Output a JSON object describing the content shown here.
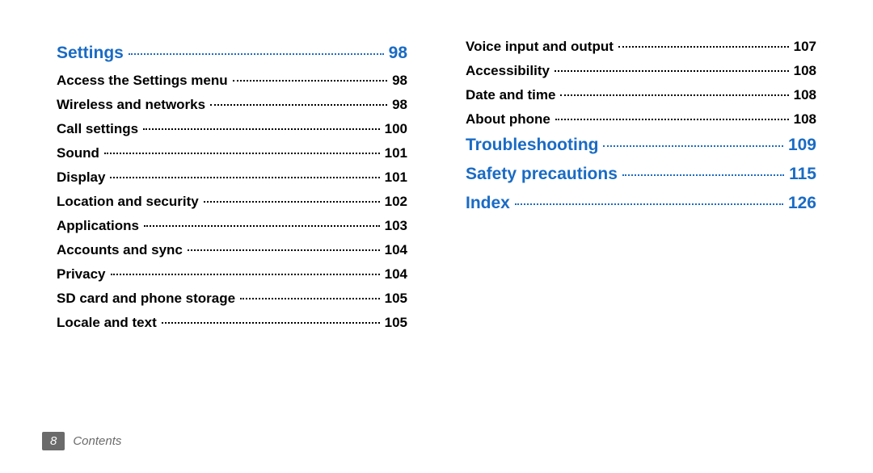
{
  "colors": {
    "section": "#1a6bc4",
    "text": "#000000",
    "footer_badge_bg": "#6b6b6b",
    "footer_text": "#6b6b6b",
    "background": "#ffffff"
  },
  "left_column": [
    {
      "label": "Settings",
      "page": "98",
      "section": true
    },
    {
      "label": "Access the Settings menu",
      "page": "98"
    },
    {
      "label": "Wireless and networks",
      "page": "98"
    },
    {
      "label": "Call settings",
      "page": "100"
    },
    {
      "label": "Sound",
      "page": "101"
    },
    {
      "label": "Display",
      "page": "101"
    },
    {
      "label": "Location and security",
      "page": "102"
    },
    {
      "label": "Applications",
      "page": "103"
    },
    {
      "label": "Accounts and sync",
      "page": "104"
    },
    {
      "label": "Privacy",
      "page": "104"
    },
    {
      "label": "SD card and phone storage",
      "page": "105"
    },
    {
      "label": "Locale and text",
      "page": "105"
    }
  ],
  "right_column": [
    {
      "label": "Voice input and output",
      "page": "107"
    },
    {
      "label": "Accessibility",
      "page": "108"
    },
    {
      "label": "Date and time",
      "page": "108"
    },
    {
      "label": "About phone",
      "page": "108"
    },
    {
      "label": "Troubleshooting",
      "page": "109",
      "section": true
    },
    {
      "label": "Safety precautions",
      "page": "115",
      "section": true
    },
    {
      "label": "Index",
      "page": "126",
      "section": true
    }
  ],
  "footer": {
    "page_number": "8",
    "label": "Contents"
  }
}
